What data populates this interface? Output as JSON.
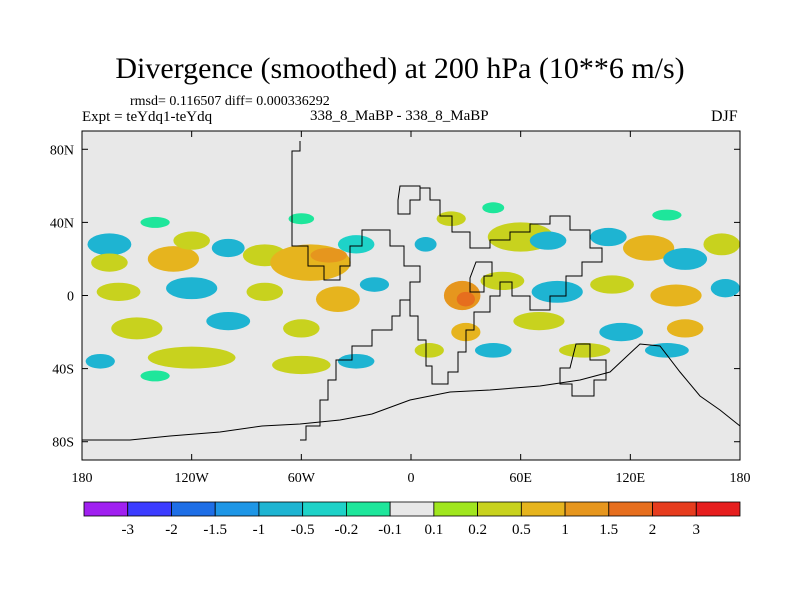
{
  "chart_data": {
    "type": "heatmap",
    "title": "Divergence (smoothed) at 200 hPa (10**6 m/s)",
    "subtitle_stats": "rmsd= 0.116507 diff= 0.000336292",
    "expt_label": "Expt = teYdq1-teYdq",
    "center_label": "338_8_MaBP - 338_8_MaBP",
    "season_label": "DJF",
    "x_ticks": [
      "180",
      "120W",
      "60W",
      "0",
      "60E",
      "120E",
      "180"
    ],
    "x_tick_values": [
      -180,
      -120,
      -60,
      0,
      60,
      120,
      180
    ],
    "y_ticks": [
      "80N",
      "40N",
      "0",
      "40S",
      "80S"
    ],
    "y_tick_values": [
      80,
      40,
      0,
      -40,
      -80
    ],
    "xlim": [
      -180,
      180
    ],
    "ylim": [
      -90,
      90
    ],
    "colorbar": {
      "labels": [
        "-3",
        "-2",
        "-1.5",
        "-1",
        "-0.5",
        "-0.2",
        "-0.1",
        "0.1",
        "0.2",
        "0.5",
        "1",
        "1.5",
        "2",
        "3"
      ],
      "colors": [
        "#a020f0",
        "#3c3cff",
        "#1e6ee6",
        "#1e96e6",
        "#1eb4d2",
        "#1ed2c8",
        "#1ee69b",
        "#e8e8e8",
        "#a0e61e",
        "#c8d21e",
        "#e6b41e",
        "#e6961e",
        "#e66e1e",
        "#e63c1e",
        "#e61e1e"
      ]
    },
    "colors": {
      "background_field": "#e8e8e8",
      "coastline": "#000000"
    },
    "features": [
      {
        "lon": -165,
        "lat": 28,
        "rx": 12,
        "ry": 6,
        "c": 4
      },
      {
        "lon": -165,
        "lat": 18,
        "rx": 10,
        "ry": 5,
        "c": 9
      },
      {
        "lon": -130,
        "lat": 20,
        "rx": 14,
        "ry": 7,
        "c": 10
      },
      {
        "lon": -120,
        "lat": 30,
        "rx": 10,
        "ry": 5,
        "c": 9
      },
      {
        "lon": -100,
        "lat": 26,
        "rx": 9,
        "ry": 5,
        "c": 4
      },
      {
        "lon": -80,
        "lat": 22,
        "rx": 12,
        "ry": 6,
        "c": 9
      },
      {
        "lon": -55,
        "lat": 18,
        "rx": 22,
        "ry": 10,
        "c": 10
      },
      {
        "lon": -45,
        "lat": 22,
        "rx": 10,
        "ry": 4,
        "c": 11
      },
      {
        "lon": -30,
        "lat": 28,
        "rx": 10,
        "ry": 5,
        "c": 5
      },
      {
        "lon": -140,
        "lat": 40,
        "rx": 8,
        "ry": 3,
        "c": 6
      },
      {
        "lon": -60,
        "lat": 42,
        "rx": 7,
        "ry": 3,
        "c": 6
      },
      {
        "lon": 8,
        "lat": 28,
        "rx": 6,
        "ry": 4,
        "c": 4
      },
      {
        "lon": 22,
        "lat": 42,
        "rx": 8,
        "ry": 4,
        "c": 9
      },
      {
        "lon": 45,
        "lat": 48,
        "rx": 6,
        "ry": 3,
        "c": 6
      },
      {
        "lon": 60,
        "lat": 32,
        "rx": 18,
        "ry": 8,
        "c": 9
      },
      {
        "lon": 75,
        "lat": 30,
        "rx": 10,
        "ry": 5,
        "c": 4
      },
      {
        "lon": 108,
        "lat": 32,
        "rx": 10,
        "ry": 5,
        "c": 4
      },
      {
        "lon": 130,
        "lat": 26,
        "rx": 14,
        "ry": 7,
        "c": 10
      },
      {
        "lon": 150,
        "lat": 20,
        "rx": 12,
        "ry": 6,
        "c": 4
      },
      {
        "lon": 170,
        "lat": 28,
        "rx": 10,
        "ry": 6,
        "c": 9
      },
      {
        "lon": 140,
        "lat": 44,
        "rx": 8,
        "ry": 3,
        "c": 6
      },
      {
        "lon": -160,
        "lat": 2,
        "rx": 12,
        "ry": 5,
        "c": 9
      },
      {
        "lon": -120,
        "lat": 4,
        "rx": 14,
        "ry": 6,
        "c": 4
      },
      {
        "lon": -80,
        "lat": 2,
        "rx": 10,
        "ry": 5,
        "c": 9
      },
      {
        "lon": -40,
        "lat": -2,
        "rx": 12,
        "ry": 7,
        "c": 10
      },
      {
        "lon": -20,
        "lat": 6,
        "rx": 8,
        "ry": 4,
        "c": 4
      },
      {
        "lon": 28,
        "lat": 0,
        "rx": 10,
        "ry": 8,
        "c": 11
      },
      {
        "lon": 30,
        "lat": -2,
        "rx": 5,
        "ry": 4,
        "c": 12
      },
      {
        "lon": 50,
        "lat": 8,
        "rx": 12,
        "ry": 5,
        "c": 9
      },
      {
        "lon": 80,
        "lat": 2,
        "rx": 14,
        "ry": 6,
        "c": 4
      },
      {
        "lon": 110,
        "lat": 6,
        "rx": 12,
        "ry": 5,
        "c": 9
      },
      {
        "lon": 145,
        "lat": 0,
        "rx": 14,
        "ry": 6,
        "c": 10
      },
      {
        "lon": 172,
        "lat": 4,
        "rx": 8,
        "ry": 5,
        "c": 4
      },
      {
        "lon": -150,
        "lat": -18,
        "rx": 14,
        "ry": 6,
        "c": 9
      },
      {
        "lon": -100,
        "lat": -14,
        "rx": 12,
        "ry": 5,
        "c": 4
      },
      {
        "lon": -60,
        "lat": -18,
        "rx": 10,
        "ry": 5,
        "c": 9
      },
      {
        "lon": 30,
        "lat": -20,
        "rx": 8,
        "ry": 5,
        "c": 10
      },
      {
        "lon": 70,
        "lat": -14,
        "rx": 14,
        "ry": 5,
        "c": 9
      },
      {
        "lon": 115,
        "lat": -20,
        "rx": 12,
        "ry": 5,
        "c": 4
      },
      {
        "lon": 150,
        "lat": -18,
        "rx": 10,
        "ry": 5,
        "c": 10
      },
      {
        "lon": -170,
        "lat": -36,
        "rx": 8,
        "ry": 4,
        "c": 4
      },
      {
        "lon": -120,
        "lat": -34,
        "rx": 24,
        "ry": 6,
        "c": 9
      },
      {
        "lon": -60,
        "lat": -38,
        "rx": 16,
        "ry": 5,
        "c": 9
      },
      {
        "lon": -30,
        "lat": -36,
        "rx": 10,
        "ry": 4,
        "c": 4
      },
      {
        "lon": 10,
        "lat": -30,
        "rx": 8,
        "ry": 4,
        "c": 9
      },
      {
        "lon": 45,
        "lat": -30,
        "rx": 10,
        "ry": 4,
        "c": 4
      },
      {
        "lon": 95,
        "lat": -30,
        "rx": 14,
        "ry": 4,
        "c": 9
      },
      {
        "lon": 140,
        "lat": -30,
        "rx": 12,
        "ry": 4,
        "c": 4
      },
      {
        "lon": -140,
        "lat": -44,
        "rx": 8,
        "ry": 3,
        "c": 6
      }
    ]
  }
}
